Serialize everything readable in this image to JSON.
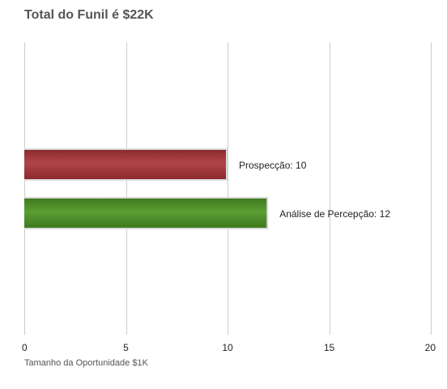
{
  "chart_data": {
    "type": "bar",
    "orientation": "horizontal",
    "title": "Total do Funil é $22K",
    "xlabel": "Tamanho da Oportunidade $1K",
    "ylabel": "",
    "xlim": [
      0,
      20
    ],
    "xticks": [
      0,
      5,
      10,
      15,
      20
    ],
    "grid": true,
    "bars": [
      {
        "category": "Prospecção",
        "value": 10,
        "label": "Prospecção: 10",
        "color": "#8b2a2e",
        "color_light": "#b04448"
      },
      {
        "category": "Análise de Percepção",
        "value": 12,
        "label": "Análise de Percepção: 12",
        "color": "#3e7a1e",
        "color_light": "#5a9e32"
      }
    ]
  }
}
